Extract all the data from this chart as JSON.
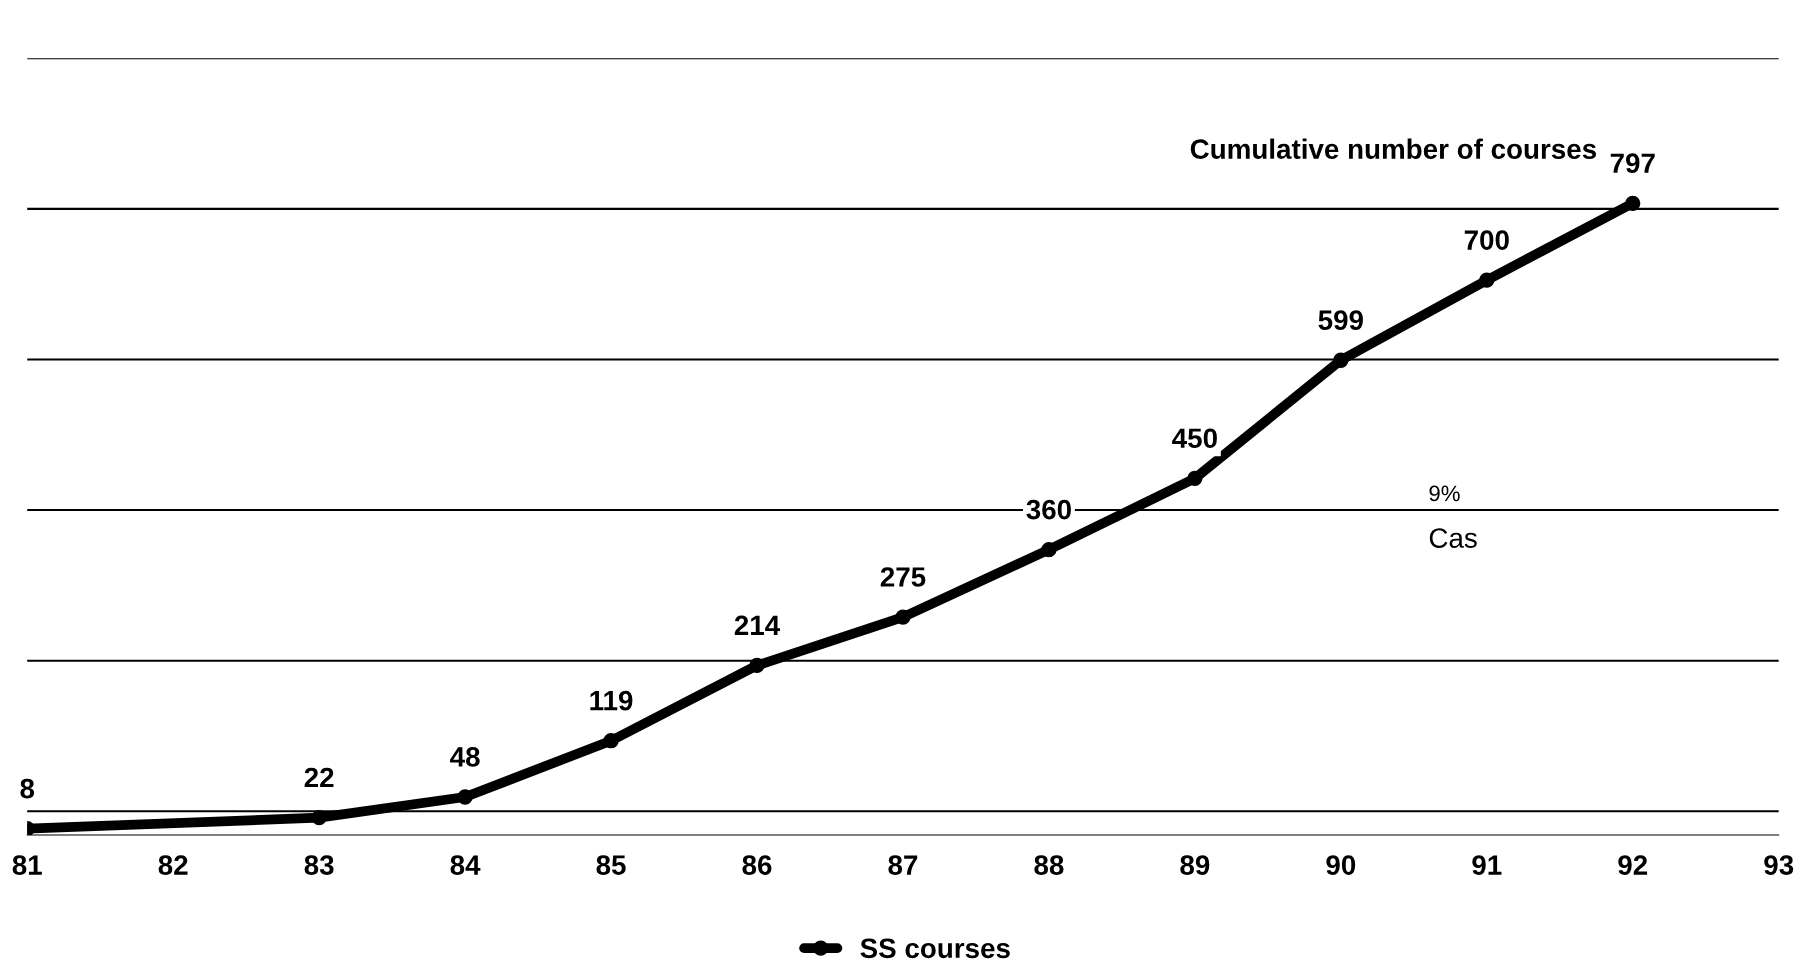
{
  "chart_data": {
    "type": "line",
    "title": "Cumulative number of courses",
    "xlim": [
      81,
      93
    ],
    "xticks": [
      81,
      82,
      83,
      84,
      85,
      86,
      87,
      88,
      89,
      90,
      91,
      92,
      93
    ],
    "ylim": [
      0,
      980
    ],
    "yticks": [
      {
        "value": 30,
        "label": null
      },
      {
        "value": 220,
        "label": null
      },
      {
        "value": 410,
        "label": null
      },
      {
        "value": 600,
        "label": null
      },
      {
        "value": 790,
        "label": null
      },
      {
        "value": 980,
        "label": null
      }
    ],
    "tick_labels": "x",
    "grid": "y",
    "legend": "bottom",
    "marker": "circle",
    "line_style": "solid",
    "data_labels": true,
    "series": [
      {
        "name": "SS courses",
        "color": "#000000",
        "x": [
          81,
          83,
          84,
          85,
          86,
          87,
          88,
          89,
          90,
          91,
          92
        ],
        "values": [
          8,
          22,
          48,
          119,
          214,
          275,
          360,
          450,
          599,
          700,
          797
        ]
      }
    ],
    "annotations": [
      "9%",
      "Cas"
    ]
  }
}
